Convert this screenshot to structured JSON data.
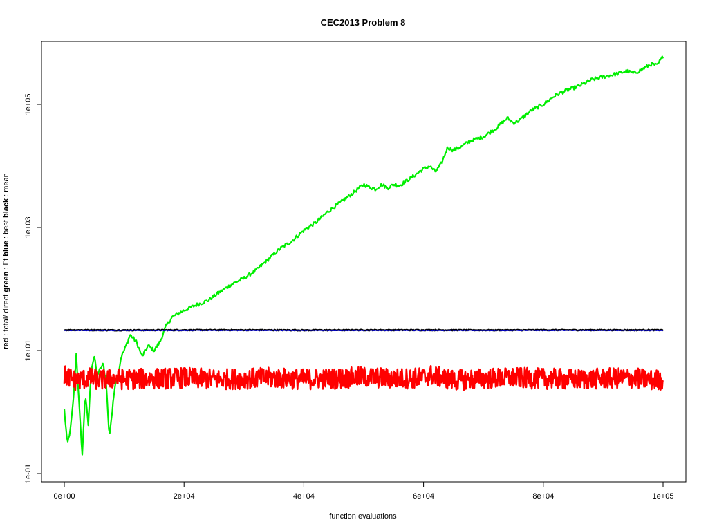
{
  "chart_data": {
    "type": "line",
    "title": "CEC2013 Problem  8",
    "xlabel": "function evaluations",
    "ylabel_parts": [
      {
        "text": "red",
        "bold": true
      },
      {
        "text": " : total/ direct ",
        "bold": false
      },
      {
        "text": "green",
        "bold": true
      },
      {
        "text": " : Ft ",
        "bold": false
      },
      {
        "text": "blue",
        "bold": true
      },
      {
        "text": " : best ",
        "bold": false
      },
      {
        "text": "black",
        "bold": true
      },
      {
        "text": " : mean",
        "bold": false
      }
    ],
    "xlim": [
      0,
      100000
    ],
    "ylim": [
      0.1,
      1000000
    ],
    "y_scale": "log",
    "grid": false,
    "legend": "none",
    "x_ticks": [
      {
        "value": 0,
        "label": "0e+00"
      },
      {
        "value": 20000,
        "label": "2e+04"
      },
      {
        "value": 40000,
        "label": "4e+04"
      },
      {
        "value": 60000,
        "label": "6e+04"
      },
      {
        "value": 80000,
        "label": "8e+04"
      },
      {
        "value": 100000,
        "label": "1e+05"
      }
    ],
    "y_ticks": [
      {
        "value": 0.1,
        "label": "1e-01"
      },
      {
        "value": 10,
        "label": "1e+01"
      },
      {
        "value": 1000,
        "label": "1e+03"
      },
      {
        "value": 100000,
        "label": "1e+05"
      }
    ],
    "series": [
      {
        "color": "#00ee00",
        "x": [
          0,
          500,
          1000,
          1500,
          2000,
          2500,
          3000,
          3500,
          4000,
          4500,
          5000,
          5500,
          6000,
          6500,
          7000,
          7500,
          8000,
          8500,
          9000,
          9500,
          10000,
          11000,
          12000,
          13000,
          14000,
          15000,
          16000,
          17000,
          18000,
          19000,
          20000,
          22000,
          24000,
          26000,
          28000,
          30000,
          32000,
          34000,
          36000,
          38000,
          40000,
          42000,
          44000,
          46000,
          48000,
          50000,
          51000,
          52000,
          53000,
          54000,
          55000,
          56000,
          58000,
          60000,
          61000,
          62000,
          63000,
          64000,
          65000,
          66000,
          68000,
          70000,
          72000,
          74000,
          75000,
          76000,
          78000,
          80000,
          82000,
          84000,
          86000,
          88000,
          90000,
          92000,
          94000,
          95000,
          96000,
          98000,
          99000,
          100000
        ],
        "y": [
          1.1,
          0.3,
          0.5,
          1.5,
          9,
          1.2,
          0.2,
          2,
          0.6,
          5,
          8,
          4,
          5,
          6,
          3,
          0.4,
          1,
          3,
          4,
          8,
          10,
          18,
          14,
          8,
          12,
          10,
          14,
          25,
          35,
          40,
          45,
          55,
          65,
          90,
          120,
          150,
          200,
          300,
          450,
          600,
          900,
          1200,
          1800,
          2500,
          3500,
          5000,
          4500,
          4200,
          5000,
          4400,
          5000,
          4800,
          6500,
          9000,
          10000,
          8000,
          11000,
          20000,
          18000,
          20000,
          26000,
          30000,
          40000,
          60000,
          50000,
          55000,
          80000,
          100000,
          140000,
          170000,
          200000,
          250000,
          280000,
          310000,
          350000,
          320000,
          350000,
          450000,
          430000,
          600000
        ]
      },
      {
        "color": "#000000",
        "x": [
          0,
          10000,
          20000,
          30000,
          40000,
          50000,
          60000,
          70000,
          80000,
          90000,
          100000
        ],
        "y": [
          21.5,
          21.4,
          21.5,
          21.5,
          21.4,
          21.5,
          21.5,
          21.4,
          21.5,
          21.5,
          21.5
        ]
      },
      {
        "color": "#0000cc",
        "x": [
          0,
          10000,
          20000,
          30000,
          40000,
          50000,
          60000,
          70000,
          80000,
          90000,
          100000
        ],
        "y": [
          21.2,
          21.2,
          21.2,
          21.2,
          21.2,
          21.2,
          21.2,
          21.2,
          21.2,
          21.2,
          21.2
        ]
      },
      {
        "color": "#ff0000",
        "x": [
          0,
          2000,
          4000,
          6000,
          8000,
          10000,
          15000,
          20000,
          25000,
          30000,
          35000,
          40000,
          45000,
          50000,
          55000,
          60000,
          61000,
          65000,
          70000,
          75000,
          80000,
          85000,
          90000,
          95000,
          98000,
          100000
        ],
        "y": [
          4,
          3.2,
          3.6,
          3.3,
          3.5,
          3.4,
          3.5,
          3.6,
          3.4,
          3.5,
          3.6,
          3.4,
          3.5,
          3.7,
          3.5,
          3.6,
          4,
          3.3,
          3.5,
          3.6,
          3.5,
          3.4,
          3.5,
          3.6,
          3.3,
          3.4
        ]
      }
    ]
  }
}
